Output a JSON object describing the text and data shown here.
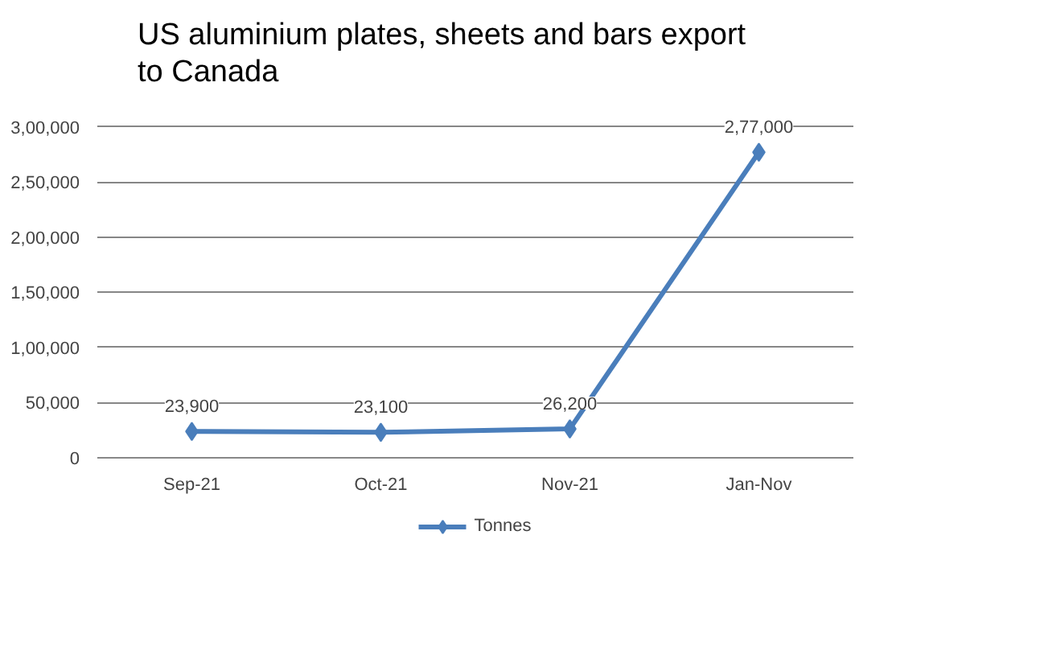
{
  "chart_data": {
    "type": "line",
    "title": "US aluminium plates, sheets and bars export to Canada",
    "categories": [
      "Sep-21",
      "Oct-21",
      "Nov-21",
      "Jan-Nov"
    ],
    "series": [
      {
        "name": "Tonnes",
        "color": "#4a7ebb",
        "values": [
          23900,
          23100,
          26200,
          277000
        ],
        "value_labels": [
          "23,900",
          "23,100",
          "26,200",
          "2,77,000"
        ]
      }
    ],
    "ylim": [
      0,
      300000
    ],
    "yticks": [
      {
        "value": 0,
        "label": "0"
      },
      {
        "value": 50000,
        "label": "50,000"
      },
      {
        "value": 100000,
        "label": "1,00,000"
      },
      {
        "value": 150000,
        "label": "1,50,000"
      },
      {
        "value": 200000,
        "label": "2,00,000"
      },
      {
        "value": 250000,
        "label": "2,50,000"
      },
      {
        "value": 300000,
        "label": "3,00,000"
      }
    ],
    "grid": "y",
    "legend": "bottom",
    "marker": "diamond",
    "line_style": "solid"
  }
}
